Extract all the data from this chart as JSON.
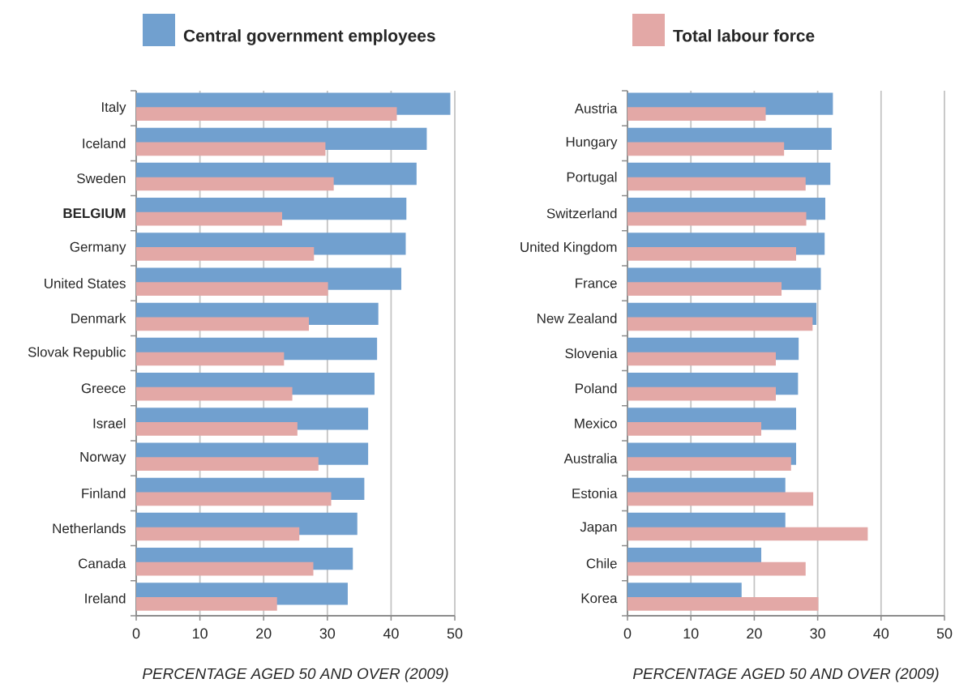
{
  "chart_data": [
    {
      "type": "bar",
      "orientation": "horizontal",
      "categories": [
        "Italy",
        "Iceland",
        "Sweden",
        "**BELGIUM**",
        "Germany",
        "United States",
        "Denmark",
        "Slovak Republic",
        "Greece",
        "Israel",
        "Norway",
        "Finland",
        "Netherlands",
        "Canada",
        "Ireland"
      ],
      "series": [
        {
          "name": "Central government employees",
          "color": "#71a0cf",
          "values": [
            49.3,
            45.6,
            44.0,
            42.4,
            42.3,
            41.6,
            38.0,
            37.8,
            37.4,
            36.4,
            36.4,
            35.8,
            34.7,
            34.0,
            33.2
          ]
        },
        {
          "name": "Total labour force",
          "color": "#e3a8a6",
          "values": [
            40.9,
            29.7,
            31.0,
            22.9,
            27.9,
            30.1,
            27.1,
            23.2,
            24.5,
            25.3,
            28.6,
            30.6,
            25.6,
            27.8,
            22.1
          ]
        }
      ],
      "xlabel": "PERCENTAGE AGED 50 AND OVER (2009)",
      "xlim": [
        0,
        50
      ],
      "xticks": [
        0,
        10,
        20,
        30,
        40,
        50
      ],
      "grid": "x",
      "legend": "top"
    },
    {
      "type": "bar",
      "orientation": "horizontal",
      "categories": [
        "Austria",
        "Hungary",
        "Portugal",
        "Switzerland",
        "United Kingdom",
        "France",
        "New Zealand",
        "Slovenia",
        "Poland",
        "Mexico",
        "Australia",
        "Estonia",
        "Japan",
        "Chile",
        "Korea"
      ],
      "series": [
        {
          "color": "#71a0cf",
          "values": [
            32.4,
            32.2,
            32.0,
            31.2,
            31.1,
            30.5,
            29.8,
            27.0,
            26.9,
            26.6,
            26.6,
            24.9,
            24.9,
            21.1,
            18.0
          ]
        },
        {
          "color": "#e3a8a6",
          "values": [
            21.8,
            24.7,
            28.1,
            28.2,
            26.6,
            24.3,
            29.2,
            23.4,
            23.4,
            21.1,
            25.8,
            29.3,
            37.9,
            28.1,
            30.1
          ]
        }
      ],
      "xlabel": "PERCENTAGE AGED 50 AND OVER (2009)",
      "xlim": [
        0,
        50
      ],
      "xticks": [
        0,
        10,
        20,
        30,
        40,
        50
      ],
      "grid": "x"
    }
  ]
}
